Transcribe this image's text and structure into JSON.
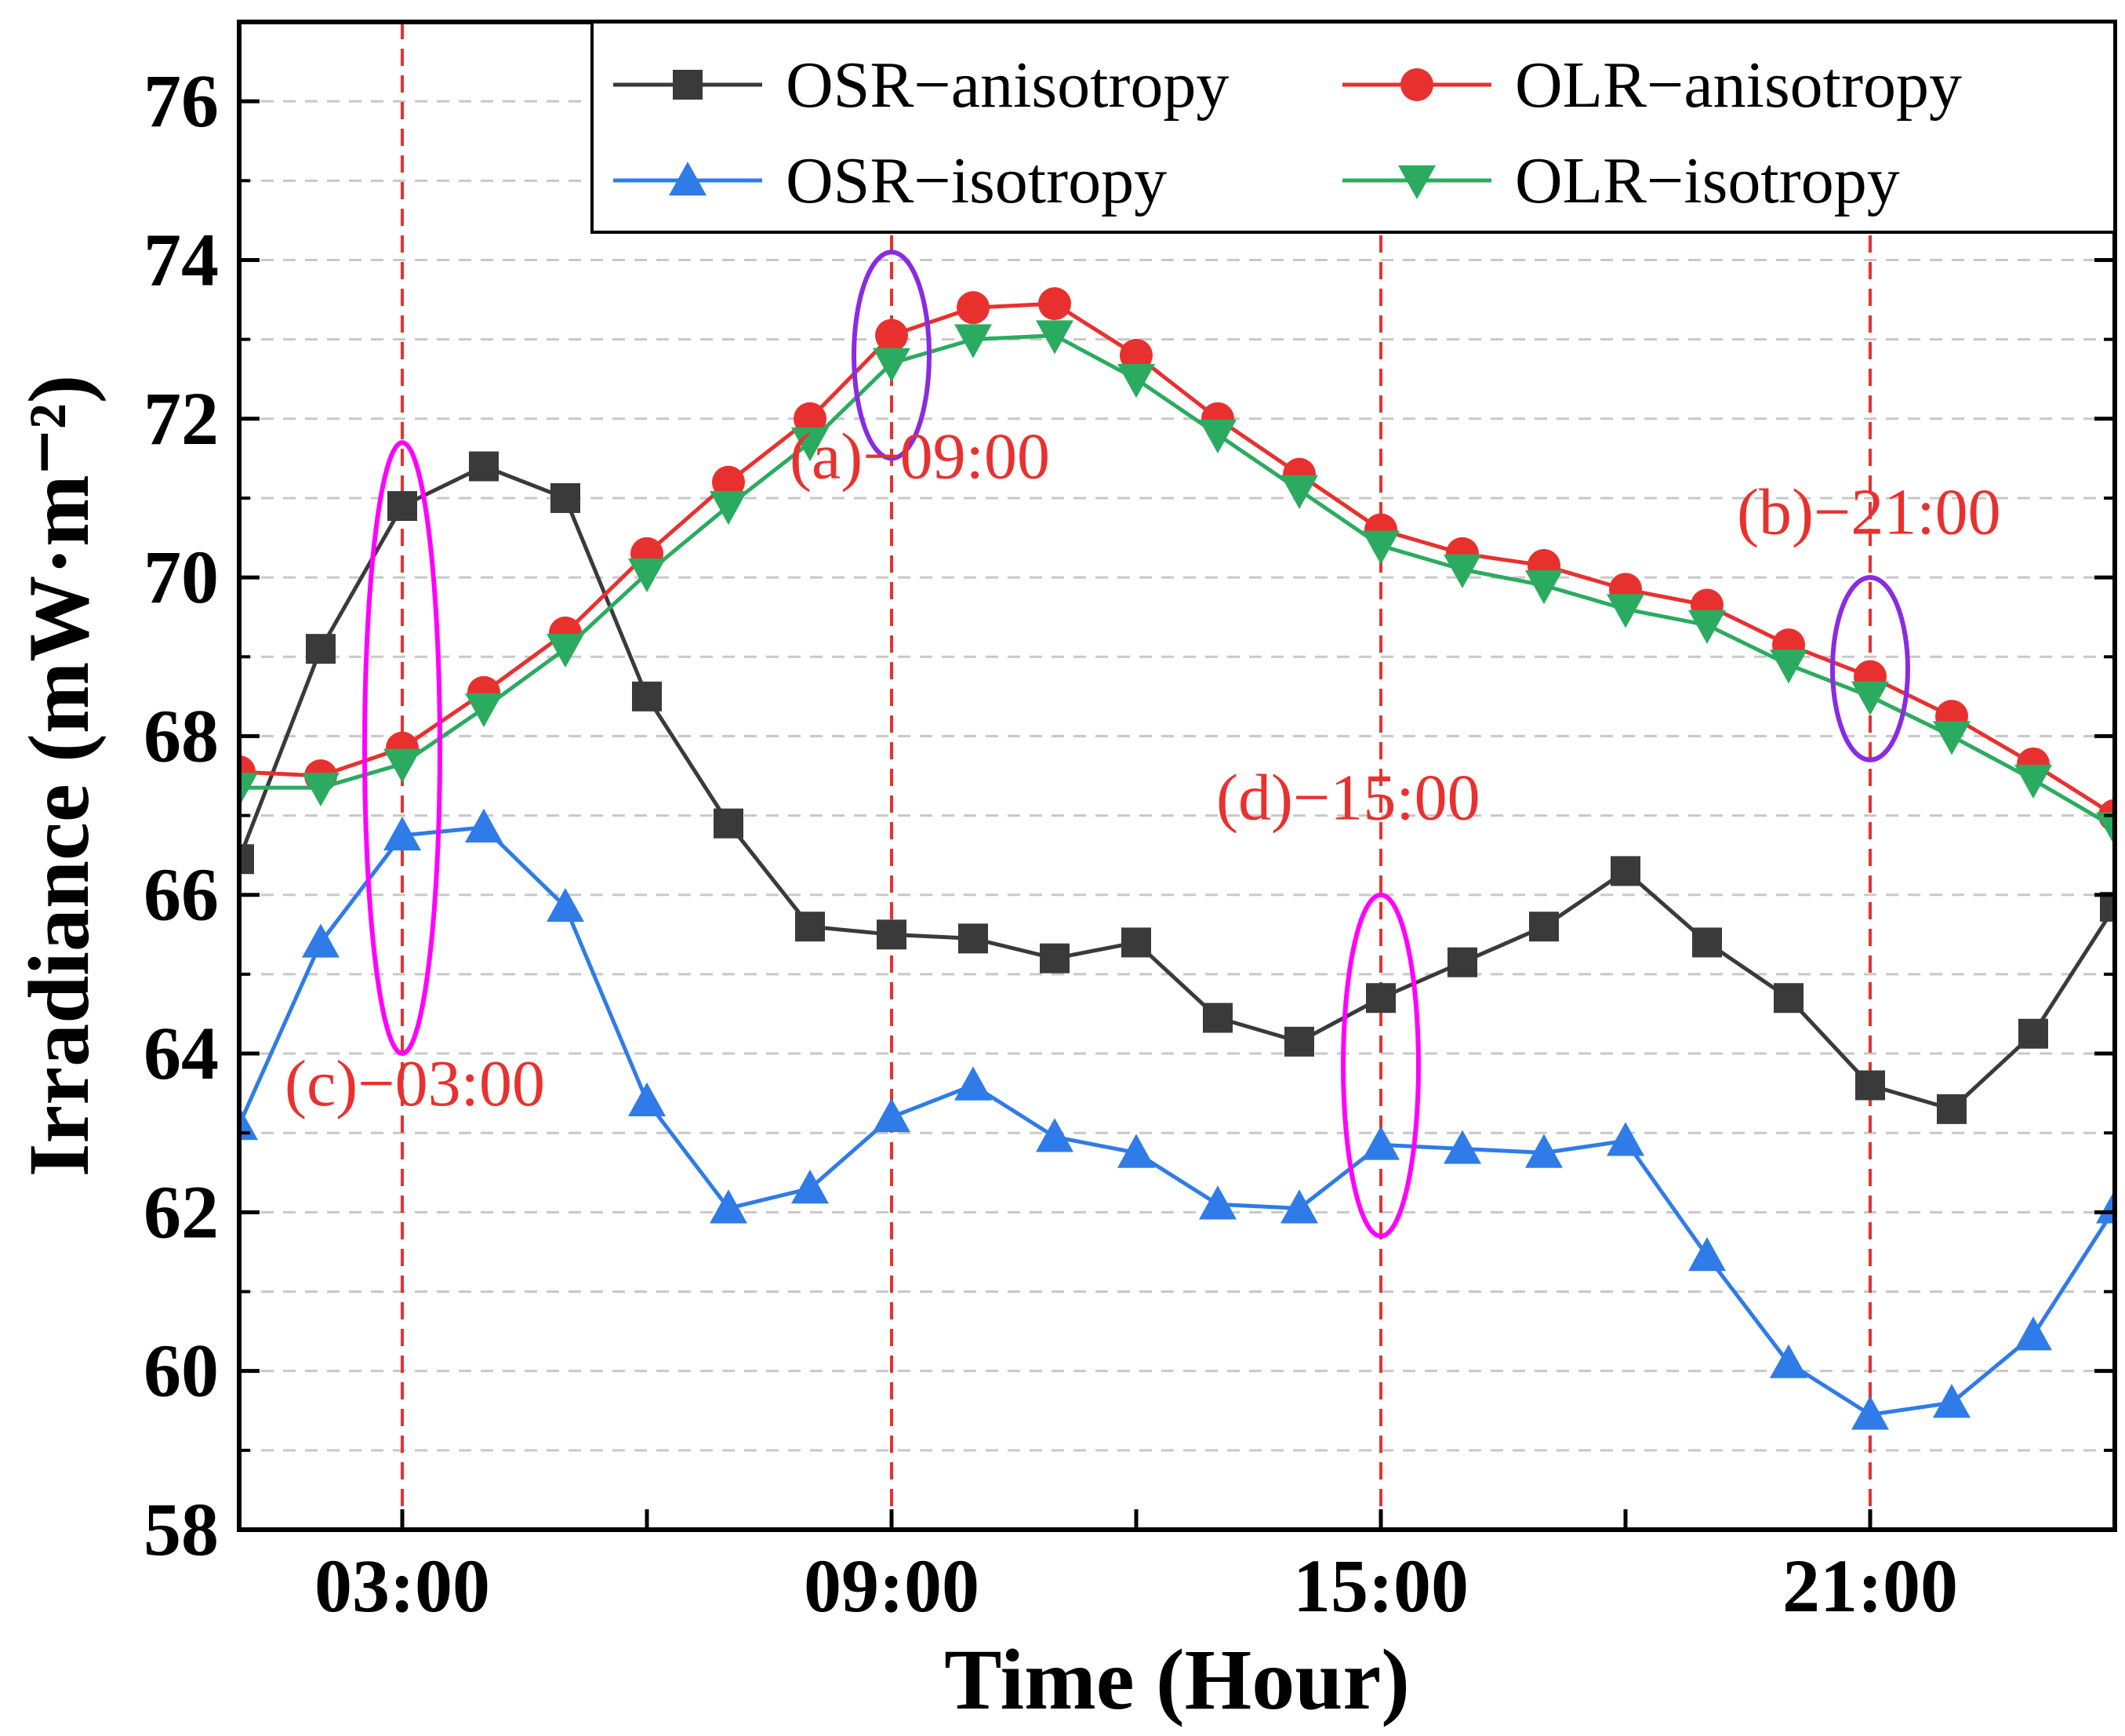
{
  "chart_data": {
    "type": "line",
    "xlabel": "Time (Hour)",
    "ylabel": "Irradiance (mW·m⁻²)",
    "xlim": [
      1,
      24
    ],
    "ylim": [
      58,
      77
    ],
    "x_ticks": [
      3,
      9,
      15,
      21
    ],
    "x_tick_labels": [
      "03:00",
      "09:00",
      "15:00",
      "21:00"
    ],
    "x_minor_ticks": [
      6,
      12,
      18
    ],
    "y_ticks": [
      58,
      60,
      62,
      64,
      66,
      68,
      70,
      72,
      74,
      76
    ],
    "y_tick_labels": [
      "58",
      "60",
      "62",
      "64",
      "66",
      "68",
      "70",
      "72",
      "74",
      "76"
    ],
    "grid": true,
    "legend_position": "top-right",
    "x": [
      1,
      2,
      3,
      4,
      5,
      6,
      7,
      8,
      9,
      10,
      11,
      12,
      13,
      14,
      15,
      16,
      17,
      18,
      19,
      20,
      21,
      22,
      23,
      24
    ],
    "series": [
      {
        "name": "OSR−anisotropy",
        "color": "#3a3a3a",
        "marker": "square",
        "values": [
          66.45,
          69.1,
          70.9,
          71.4,
          71.0,
          68.5,
          66.9,
          65.6,
          65.5,
          65.45,
          65.2,
          65.4,
          64.45,
          64.15,
          64.7,
          65.15,
          65.6,
          66.3,
          65.4,
          64.7,
          63.6,
          63.3,
          64.25,
          65.85
        ]
      },
      {
        "name": "OLR−anisotropy",
        "color": "#e8312f",
        "marker": "circle",
        "values": [
          67.55,
          67.5,
          67.85,
          68.55,
          69.3,
          70.3,
          71.2,
          72.0,
          73.05,
          73.4,
          73.45,
          72.8,
          72.0,
          71.3,
          70.6,
          70.3,
          70.15,
          69.85,
          69.65,
          69.15,
          68.75,
          68.25,
          67.65,
          67.0
        ]
      },
      {
        "name": "OSR−isotropy",
        "color": "#2f7be8",
        "marker": "triangle-up",
        "values": [
          63.1,
          65.4,
          66.75,
          66.85,
          65.85,
          63.4,
          62.05,
          62.3,
          63.2,
          63.6,
          62.95,
          62.75,
          62.1,
          62.05,
          62.85,
          62.8,
          62.75,
          62.9,
          61.45,
          60.1,
          59.45,
          59.6,
          60.45,
          62.05
        ]
      },
      {
        "name": "OLR−isotropy",
        "color": "#2bab5f",
        "marker": "triangle-down",
        "values": [
          67.35,
          67.35,
          67.65,
          68.35,
          69.1,
          70.05,
          70.9,
          71.7,
          72.7,
          73.0,
          73.05,
          72.5,
          71.8,
          71.1,
          70.4,
          70.1,
          69.9,
          69.6,
          69.4,
          68.9,
          68.5,
          68.0,
          67.45,
          66.85
        ]
      }
    ],
    "vlines": {
      "x": [
        3,
        9,
        15,
        21
      ],
      "color": "#e8312f",
      "style": "dashed"
    },
    "annotations": [
      {
        "text": "(a)−09:00",
        "color": "#e8312f",
        "x": 9
      },
      {
        "text": "(b)−21:00",
        "color": "#e8312f",
        "x": 21
      },
      {
        "text": "(c)−03:00",
        "color": "#e8312f",
        "x": 3
      },
      {
        "text": "(d)−15:00",
        "color": "#e8312f",
        "x": 15
      }
    ],
    "highlight_ellipses": [
      {
        "name": "ellipse-a",
        "color": "#8a2be2",
        "x": 9,
        "y_range": [
          71.5,
          74.1
        ]
      },
      {
        "name": "ellipse-b",
        "color": "#8a2be2",
        "x": 21,
        "y_range": [
          67.7,
          70.0
        ]
      },
      {
        "name": "ellipse-c",
        "color": "#ff00ff",
        "x": 3,
        "y_range": [
          64.0,
          71.7
        ]
      },
      {
        "name": "ellipse-d",
        "color": "#ff00ff",
        "x": 15,
        "y_range": [
          61.7,
          66.0
        ]
      }
    ]
  }
}
